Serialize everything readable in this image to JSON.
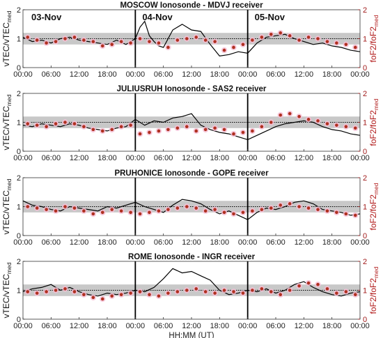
{
  "chart_data": [
    {
      "type": "line",
      "title": "MOSCOW Ionosonde - MDVJ receiver",
      "day_labels": [
        "03-Nov",
        "04-Nov",
        "05-Nov"
      ],
      "ylabel_left": {
        "main": "vTEC/vTEC",
        "sub": "med"
      },
      "ylabel_right": {
        "main": "foF2/foF2",
        "sub": "med"
      },
      "ylim": [
        0,
        2
      ],
      "x_ticks": [
        "00:00",
        "06:00",
        "12:00",
        "18:00",
        "00:00",
        "06:00",
        "12:00",
        "18:00",
        "00:00",
        "06:00",
        "12:00",
        "18:00",
        "00:00"
      ],
      "y_ticks_left": [
        "0",
        "1",
        "2"
      ],
      "y_ticks_right": [
        "0",
        "1",
        "2"
      ],
      "band": [
        0.8,
        1.2
      ],
      "reference": 1,
      "day_dividers": [
        24,
        48
      ],
      "series": [
        {
          "color": "#000000",
          "x": [
            0,
            2,
            4,
            6,
            8,
            10,
            12,
            14,
            16,
            18,
            20,
            22,
            24,
            25,
            26,
            27,
            28,
            29,
            30,
            32,
            34,
            36,
            38,
            40,
            42,
            44,
            46,
            48,
            50,
            52,
            54,
            56,
            58,
            60,
            62,
            64,
            66,
            68,
            70,
            72
          ],
          "y": [
            1.05,
            0.9,
            0.95,
            0.85,
            1.0,
            1.05,
            0.95,
            0.9,
            0.85,
            0.8,
            0.95,
            0.8,
            1.0,
            1.4,
            1.6,
            1.1,
            0.9,
            0.75,
            0.7,
            1.3,
            1.5,
            1.3,
            1.25,
            0.8,
            0.4,
            0.45,
            0.55,
            0.5,
            0.85,
            1.05,
            1.1,
            1.15,
            1.0,
            0.9,
            0.8,
            0.85,
            0.75,
            0.7,
            0.6,
            0.55
          ]
        },
        {
          "color": "#b03020",
          "x": [
            1,
            3,
            5,
            7,
            9,
            11,
            13,
            15,
            17,
            19,
            21,
            23,
            25,
            27,
            29,
            31,
            33,
            35,
            37,
            39,
            41,
            43,
            45,
            47,
            49,
            51,
            53,
            55,
            57,
            59,
            61,
            63,
            65,
            67,
            69,
            71
          ],
          "y": [
            1.05,
            0.95,
            0.85,
            0.9,
            1.0,
            1.05,
            0.95,
            0.9,
            0.75,
            0.8,
            0.9,
            0.85,
            1.0,
            0.9,
            0.85,
            0.7,
            0.95,
            1.0,
            1.05,
            0.95,
            0.9,
            0.6,
            0.7,
            0.8,
            0.95,
            1.05,
            1.15,
            1.2,
            1.1,
            0.95,
            1.05,
            1.0,
            0.9,
            0.85,
            0.8,
            0.7
          ]
        }
      ]
    },
    {
      "type": "line",
      "title": "JULIUSRUH Ionosonde - SAS2 receiver",
      "ylabel_left": {
        "main": "vTEC/vTEC",
        "sub": "med"
      },
      "ylabel_right": {
        "main": "foF2/foF2",
        "sub": "med"
      },
      "ylim": [
        0,
        2
      ],
      "x_ticks": [
        "00:00",
        "06:00",
        "12:00",
        "18:00",
        "00:00",
        "06:00",
        "12:00",
        "18:00",
        "00:00",
        "06:00",
        "12:00",
        "18:00",
        "00:00"
      ],
      "y_ticks_left": [
        "0",
        "1",
        "2"
      ],
      "y_ticks_right": [
        "0",
        "1",
        "2"
      ],
      "band": [
        0.8,
        1.2
      ],
      "reference": 1,
      "day_dividers": [
        24,
        48
      ],
      "series": [
        {
          "color": "#000000",
          "x": [
            0,
            2,
            4,
            6,
            8,
            10,
            12,
            14,
            16,
            18,
            20,
            22,
            24,
            26,
            28,
            30,
            32,
            34,
            36,
            38,
            40,
            42,
            44,
            46,
            48,
            50,
            52,
            54,
            56,
            58,
            60,
            62,
            64,
            66,
            68,
            70,
            72
          ],
          "y": [
            0.9,
            0.85,
            0.95,
            0.9,
            0.85,
            0.95,
            0.9,
            0.8,
            0.75,
            0.7,
            0.8,
            0.85,
            1.1,
            0.9,
            1.05,
            1.0,
            1.15,
            1.2,
            1.3,
            0.9,
            0.75,
            0.65,
            0.6,
            0.5,
            0.4,
            0.55,
            0.7,
            0.85,
            0.95,
            1.0,
            1.05,
            1.0,
            0.85,
            0.75,
            0.7,
            0.6,
            0.55
          ]
        },
        {
          "color": "#b03020",
          "x": [
            1,
            3,
            5,
            7,
            9,
            11,
            13,
            15,
            17,
            19,
            21,
            23,
            25,
            27,
            29,
            31,
            33,
            35,
            37,
            39,
            41,
            43,
            45,
            47,
            49,
            51,
            53,
            55,
            57,
            59,
            61,
            63,
            65,
            67,
            69,
            71
          ],
          "y": [
            0.95,
            0.9,
            0.85,
            0.95,
            1.0,
            0.95,
            0.85,
            0.75,
            0.7,
            0.75,
            0.85,
            0.9,
            0.6,
            0.65,
            0.7,
            0.75,
            0.8,
            0.85,
            0.7,
            0.75,
            0.8,
            0.75,
            0.6,
            0.65,
            0.7,
            0.85,
            1.0,
            1.25,
            1.3,
            1.2,
            1.1,
            1.05,
            0.95,
            0.9,
            0.85,
            0.8
          ]
        }
      ]
    },
    {
      "type": "line",
      "title": "PRUHONICE Ionosonde - GOPE receiver",
      "ylabel_left": {
        "main": "vTEC/vTEC",
        "sub": "med"
      },
      "ylabel_right": {
        "main": "foF2/foF2",
        "sub": "med"
      },
      "ylim": [
        0,
        2
      ],
      "x_ticks": [
        "00:00",
        "06:00",
        "12:00",
        "18:00",
        "00:00",
        "06:00",
        "12:00",
        "18:00",
        "00:00",
        "06:00",
        "12:00",
        "18:00",
        "00:00"
      ],
      "y_ticks_left": [
        "0",
        "1",
        "2"
      ],
      "y_ticks_right": [
        "0",
        "1",
        "2"
      ],
      "band": [
        0.8,
        1.2
      ],
      "reference": 1,
      "day_dividers": [
        24,
        48
      ],
      "series": [
        {
          "color": "#000000",
          "x": [
            0,
            2,
            4,
            6,
            8,
            10,
            12,
            14,
            16,
            18,
            20,
            22,
            24,
            26,
            28,
            30,
            32,
            34,
            36,
            38,
            40,
            42,
            44,
            46,
            48,
            50,
            52,
            54,
            56,
            58,
            60,
            62,
            64,
            66,
            68,
            70,
            72
          ],
          "y": [
            1.2,
            1.05,
            1.0,
            0.9,
            0.85,
            1.0,
            0.95,
            0.9,
            0.85,
            1.0,
            0.95,
            1.05,
            1.15,
            1.0,
            0.9,
            0.8,
            1.05,
            1.25,
            1.2,
            1.1,
            0.9,
            0.75,
            0.85,
            0.7,
            0.55,
            0.8,
            0.95,
            0.9,
            1.0,
            1.15,
            1.2,
            1.1,
            0.9,
            0.85,
            0.8,
            0.7,
            0.75
          ]
        },
        {
          "color": "#b03020",
          "x": [
            1,
            3,
            5,
            7,
            9,
            11,
            13,
            15,
            17,
            19,
            21,
            23,
            25,
            27,
            29,
            31,
            33,
            35,
            37,
            39,
            41,
            43,
            45,
            47,
            49,
            51,
            53,
            55,
            57,
            59,
            61,
            63,
            65,
            67,
            69,
            71
          ],
          "y": [
            1.0,
            0.95,
            0.9,
            0.85,
            1.0,
            0.95,
            0.85,
            0.75,
            0.8,
            0.9,
            0.85,
            0.8,
            0.75,
            0.8,
            0.85,
            0.9,
            0.95,
            1.0,
            0.95,
            0.85,
            0.9,
            0.8,
            0.75,
            0.8,
            0.85,
            0.9,
            0.95,
            1.05,
            1.1,
            1.0,
            0.95,
            0.9,
            0.85,
            0.8,
            0.75,
            0.7
          ]
        }
      ]
    },
    {
      "type": "line",
      "title": "ROME Ionosonde - INGR receiver",
      "ylabel_left": {
        "main": "vTEC/vTEC",
        "sub": "med"
      },
      "ylabel_right": {
        "main": "foF2/foF2",
        "sub": "med"
      },
      "xlabel": "HH:MM (UT)",
      "ylim": [
        0,
        2
      ],
      "x_ticks": [
        "00:00",
        "06:00",
        "12:00",
        "18:00",
        "00:00",
        "06:00",
        "12:00",
        "18:00",
        "00:00",
        "06:00",
        "12:00",
        "18:00",
        "00:00"
      ],
      "y_ticks_left": [
        "0",
        "1",
        "2"
      ],
      "y_ticks_right": [
        "0",
        "1",
        "2"
      ],
      "band": [
        0.8,
        1.2
      ],
      "reference": 1,
      "day_dividers": [
        24,
        48
      ],
      "series": [
        {
          "color": "#000000",
          "x": [
            0,
            2,
            4,
            6,
            8,
            10,
            12,
            14,
            16,
            18,
            20,
            22,
            24,
            26,
            28,
            30,
            32,
            34,
            36,
            38,
            40,
            42,
            44,
            46,
            48,
            50,
            52,
            54,
            56,
            58,
            60,
            62,
            64,
            66,
            68,
            70,
            72
          ],
          "y": [
            0.95,
            1.05,
            1.1,
            1.2,
            1.0,
            1.1,
            0.95,
            0.85,
            0.8,
            0.9,
            0.85,
            0.9,
            1.0,
            0.95,
            1.1,
            1.4,
            1.75,
            1.6,
            1.65,
            1.5,
            1.35,
            1.0,
            0.85,
            0.9,
            1.0,
            0.95,
            1.05,
            0.9,
            1.0,
            1.2,
            1.3,
            1.1,
            0.95,
            0.85,
            0.8,
            0.9,
            0.95
          ]
        },
        {
          "color": "#b03020",
          "x": [
            1,
            3,
            5,
            7,
            9,
            11,
            13,
            15,
            17,
            19,
            21,
            23,
            25,
            27,
            29,
            31,
            33,
            35,
            37,
            39,
            41,
            43,
            45,
            47,
            49,
            51,
            53,
            55,
            57,
            59,
            61,
            63,
            65,
            67,
            69,
            71
          ],
          "y": [
            0.95,
            0.9,
            0.95,
            1.0,
            1.05,
            0.95,
            0.85,
            0.75,
            0.7,
            0.8,
            0.85,
            0.9,
            0.95,
            0.85,
            0.8,
            0.9,
            0.95,
            1.0,
            1.05,
            0.95,
            0.9,
            1.0,
            0.95,
            0.9,
            1.0,
            1.05,
            0.95,
            0.85,
            1.0,
            1.15,
            1.25,
            1.2,
            1.05,
            0.9,
            0.95,
            0.85
          ]
        }
      ]
    }
  ],
  "colors": {
    "band": "#c8c8c8",
    "tec_line": "#000000",
    "fof2_marker": "#9c2a14",
    "fof2_halo": "#f6bfd6",
    "right_axis": "#a11a1a"
  }
}
